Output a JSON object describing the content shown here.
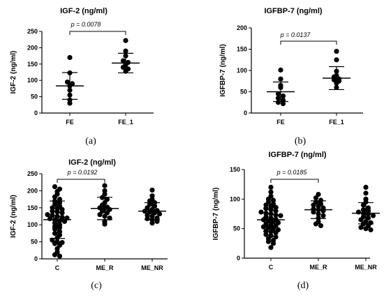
{
  "chart_data": [
    {
      "type": "scatter",
      "title": "IGF-2 (ng/ml)",
      "ylabel": "IGF-2 (ng/ml)",
      "caption": "(a)",
      "ylim": [
        0,
        250
      ],
      "yticks": [
        0,
        50,
        100,
        150,
        200,
        250
      ],
      "categories": [
        "FE",
        "FE_1"
      ],
      "annotation": "p = 0.0078",
      "series": [
        {
          "category": "FE",
          "mean": 83,
          "sd": 41,
          "values": [
            170,
            123,
            95,
            90,
            83,
            70,
            55,
            40,
            30
          ]
        },
        {
          "category": "FE_1",
          "mean": 153,
          "sd": 30,
          "values": [
            222,
            190,
            175,
            160,
            155,
            148,
            140,
            135,
            128
          ]
        }
      ]
    },
    {
      "type": "scatter",
      "title": "IGFBP-7 (ng/ml)",
      "ylabel": "IGFBP-7 (ng/ml)",
      "caption": "(b)",
      "ylim": [
        0,
        200
      ],
      "yticks": [
        0,
        50,
        100,
        150,
        200
      ],
      "categories": [
        "FE",
        "FE_1"
      ],
      "annotation": "p = 0.0137",
      "series": [
        {
          "category": "FE",
          "mean": 50,
          "sd": 23,
          "values": [
            101,
            80,
            65,
            60,
            45,
            40,
            35,
            30,
            25,
            22
          ]
        },
        {
          "category": "FE_1",
          "mean": 82,
          "sd": 27,
          "values": [
            145,
            125,
            98,
            88,
            85,
            80,
            78,
            75,
            70,
            60
          ]
        }
      ]
    },
    {
      "type": "scatter",
      "title": "IGF-2 (ng/ml)",
      "ylabel": "IGF-2 (ng/ml)",
      "caption": "(c)",
      "ylim": [
        0,
        250
      ],
      "yticks": [
        0,
        50,
        100,
        150,
        200,
        250
      ],
      "categories": [
        "C",
        "ME_R",
        "ME_NR"
      ],
      "annotation": "p = 0.0192",
      "series": [
        {
          "category": "C",
          "mean": 115,
          "sd": 55,
          "values": [
            212,
            205,
            198,
            190,
            182,
            175,
            170,
            165,
            160,
            155,
            150,
            148,
            145,
            140,
            138,
            135,
            130,
            128,
            125,
            122,
            120,
            118,
            115,
            112,
            110,
            105,
            100,
            95,
            92,
            88,
            80,
            75,
            70,
            62,
            55,
            50,
            48,
            45,
            40,
            30,
            20,
            12,
            8
          ]
        },
        {
          "category": "ME_R",
          "mean": 148,
          "sd": 33,
          "values": [
            215,
            200,
            190,
            180,
            175,
            165,
            158,
            152,
            150,
            148,
            145,
            140,
            135,
            130,
            125,
            120,
            110,
            102
          ]
        },
        {
          "category": "ME_NR",
          "mean": 140,
          "sd": 25,
          "values": [
            202,
            185,
            175,
            170,
            165,
            160,
            155,
            150,
            145,
            142,
            140,
            138,
            135,
            132,
            128,
            125,
            120,
            118,
            115,
            110,
            105
          ]
        }
      ]
    },
    {
      "type": "scatter",
      "title": "IGFBP-7 (ng/ml)",
      "ylabel": "IGFBP-7 (ng/ml)",
      "caption": "(d)",
      "ylim": [
        0,
        150
      ],
      "yticks": [
        0,
        50,
        100,
        150
      ],
      "categories": [
        "C",
        "ME_R",
        "ME_NR"
      ],
      "annotation": "p = 0.0185",
      "series": [
        {
          "category": "C",
          "mean": 65,
          "sd": 20,
          "values": [
            120,
            112,
            105,
            100,
            98,
            95,
            92,
            90,
            88,
            86,
            84,
            82,
            80,
            78,
            76,
            75,
            73,
            72,
            70,
            68,
            66,
            65,
            63,
            62,
            60,
            58,
            56,
            55,
            53,
            52,
            50,
            48,
            46,
            45,
            43,
            40,
            38,
            36,
            33,
            30,
            28,
            25,
            18
          ]
        },
        {
          "category": "ME_R",
          "mean": 82,
          "sd": 15,
          "values": [
            108,
            102,
            98,
            95,
            92,
            90,
            88,
            85,
            83,
            82,
            80,
            78,
            75,
            72,
            68,
            62,
            58,
            55
          ]
        },
        {
          "category": "ME_NR",
          "mean": 76,
          "sd": 18,
          "values": [
            120,
            110,
            100,
            95,
            90,
            85,
            82,
            80,
            78,
            76,
            75,
            72,
            70,
            68,
            65,
            62,
            60,
            58,
            55,
            52,
            50,
            48
          ]
        }
      ]
    }
  ]
}
